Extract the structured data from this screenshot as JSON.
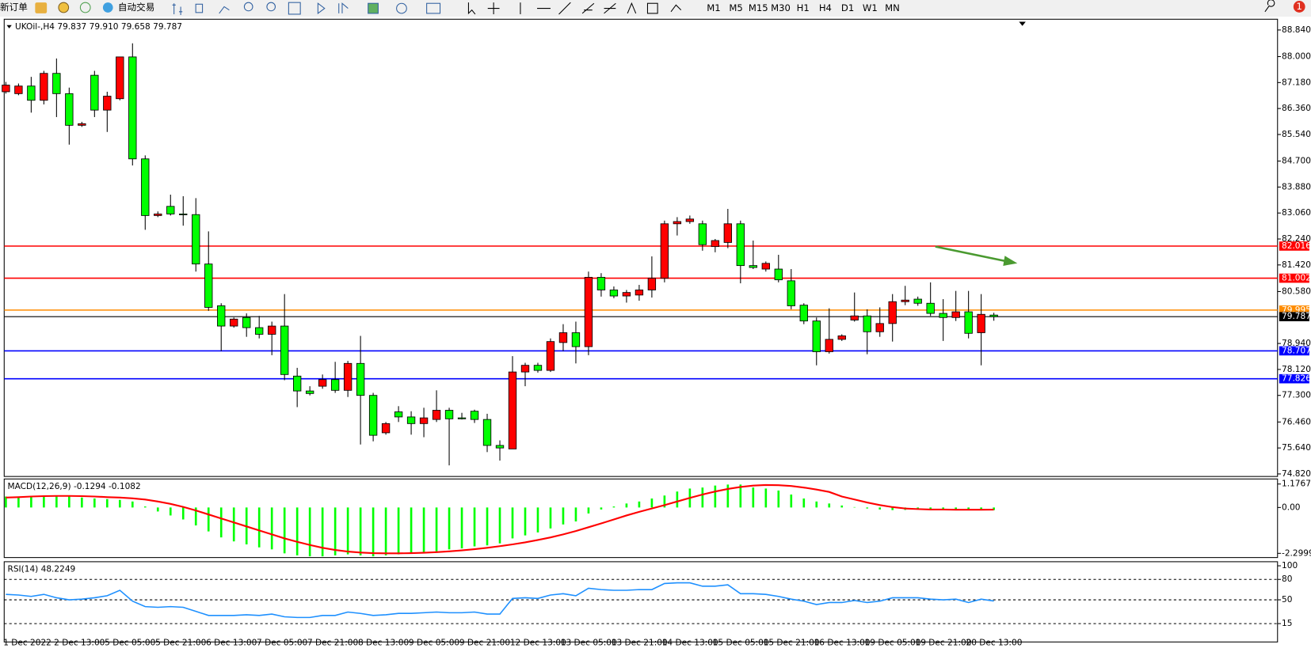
{
  "toolbar": {
    "new_order": "新订单",
    "auto_trading": "自动交易",
    "timeframes": [
      "M1",
      "M5",
      "M15",
      "M30",
      "H1",
      "H4",
      "D1",
      "W1",
      "MN"
    ],
    "notifications": 1
  },
  "chart_data": [
    {
      "type": "candlestick",
      "title": "UKOil-,H4 79.837 79.910 79.658 79.787",
      "categories": [
        "1 Dec 2022",
        null,
        null,
        null,
        "2 Dec 13:00",
        null,
        null,
        null,
        "5 Dec 05:00",
        null,
        null,
        null,
        "5 Dec 21:00",
        null,
        null,
        null,
        "6 Dec 13:00",
        null,
        null,
        null,
        "7 Dec 05:00",
        null,
        null,
        null,
        "7 Dec 21:00",
        null,
        null,
        null,
        "8 Dec 13:00",
        null,
        null,
        null,
        "9 Dec 05:00",
        null,
        null,
        null,
        "9 Dec 21:00",
        null,
        null,
        null,
        "12 Dec 13:00",
        null,
        null,
        null,
        "13 Dec 05:00",
        null,
        null,
        null,
        "13 Dec 21:00",
        null,
        null,
        null,
        "14 Dec 13:00",
        null,
        null,
        null,
        "15 Dec 05:00",
        null,
        null,
        null,
        "15 Dec 21:00",
        null,
        null,
        null,
        "16 Dec 13:00",
        null,
        null,
        null,
        "19 Dec 05:00",
        null,
        null,
        null,
        "19 Dec 21:00",
        null,
        null,
        null,
        "20 Dec 13:00",
        null,
        null
      ],
      "open": [
        86.89,
        86.83,
        87.07,
        86.62,
        87.47,
        86.83,
        85.83,
        87.41,
        86.31,
        86.67,
        87.99,
        84.77,
        82.98,
        83.27,
        83.03,
        83.01,
        81.45,
        80.13,
        79.49,
        79.76,
        79.44,
        79.23,
        79.49,
        77.91,
        77.44,
        77.59,
        77.8,
        77.46,
        78.31,
        77.3,
        76.12,
        76.78,
        76.62,
        76.41,
        76.54,
        76.83,
        76.59,
        76.8,
        76.54,
        75.72,
        75.61,
        78.04,
        78.25,
        78.09,
        78.97,
        79.28,
        78.84,
        81.03,
        80.63,
        80.44,
        80.47,
        80.63,
        81.0,
        82.72,
        82.79,
        82.72,
        82.0,
        82.13,
        82.72,
        81.4,
        81.29,
        81.29,
        80.92,
        80.15,
        79.65,
        78.68,
        79.07,
        79.68,
        79.81,
        79.31,
        79.57,
        80.26,
        80.34,
        80.21,
        79.89,
        79.76,
        79.94,
        79.28,
        79.837
      ],
      "high": [
        87.2,
        87.15,
        87.36,
        87.55,
        87.94,
        87.02,
        85.94,
        87.55,
        86.89,
        87.99,
        88.42,
        84.88,
        83.11,
        83.64,
        83.59,
        83.53,
        82.48,
        80.21,
        79.76,
        79.89,
        79.81,
        79.63,
        80.5,
        78.17,
        77.59,
        77.96,
        78.36,
        78.39,
        79.18,
        77.38,
        76.46,
        76.96,
        76.8,
        76.91,
        77.46,
        76.91,
        76.75,
        76.85,
        76.72,
        75.88,
        78.54,
        78.33,
        78.33,
        79.1,
        79.55,
        79.63,
        81.21,
        81.16,
        80.74,
        80.63,
        80.79,
        81.69,
        82.82,
        82.93,
        82.98,
        82.82,
        82.24,
        83.19,
        82.82,
        82.19,
        81.53,
        81.74,
        81.29,
        80.21,
        79.76,
        80.05,
        79.23,
        80.55,
        80.02,
        80.08,
        80.5,
        80.76,
        80.42,
        80.87,
        80.34,
        80.6,
        80.6,
        80.5,
        79.91
      ],
      "low": [
        86.83,
        86.78,
        86.23,
        86.49,
        86.09,
        85.22,
        85.78,
        86.09,
        85.62,
        86.62,
        84.56,
        82.53,
        82.93,
        82.98,
        82.66,
        81.21,
        79.97,
        78.7,
        79.44,
        79.15,
        79.1,
        78.57,
        77.78,
        76.93,
        77.3,
        77.51,
        77.38,
        77.25,
        75.75,
        75.85,
        76.06,
        76.46,
        76.06,
        75.98,
        76.46,
        75.09,
        76.54,
        76.43,
        75.51,
        75.24,
        75.61,
        77.59,
        78.02,
        78.04,
        78.7,
        78.31,
        78.57,
        80.42,
        80.37,
        80.23,
        80.29,
        80.39,
        80.87,
        82.35,
        82.72,
        81.87,
        81.82,
        81.95,
        80.84,
        81.29,
        81.21,
        80.87,
        80.02,
        79.55,
        78.25,
        78.62,
        79.02,
        79.63,
        78.6,
        79.15,
        79.0,
        80.15,
        80.13,
        79.81,
        79.02,
        79.65,
        79.1,
        78.25,
        79.658
      ],
      "close": [
        87.1,
        87.07,
        86.62,
        87.47,
        86.83,
        85.83,
        85.88,
        86.31,
        86.75,
        87.99,
        84.77,
        82.98,
        83.03,
        83.03,
        83.01,
        81.45,
        80.08,
        79.49,
        79.71,
        79.44,
        79.23,
        79.49,
        77.96,
        77.44,
        77.36,
        77.8,
        77.46,
        78.31,
        77.3,
        76.04,
        76.41,
        76.62,
        76.41,
        76.59,
        76.83,
        76.56,
        76.56,
        76.54,
        75.72,
        75.64,
        78.04,
        78.25,
        78.09,
        79.0,
        79.28,
        78.84,
        81.03,
        80.63,
        80.44,
        80.55,
        80.63,
        81.0,
        82.72,
        82.79,
        82.87,
        82.06,
        82.19,
        82.72,
        81.4,
        81.34,
        81.47,
        80.95,
        80.13,
        79.65,
        78.68,
        79.07,
        79.18,
        79.81,
        79.31,
        79.57,
        80.26,
        80.31,
        80.21,
        79.89,
        79.76,
        79.94,
        79.26,
        79.86,
        79.787
      ],
      "up_color": "#ff0000",
      "down_color": "#00ff00",
      "levels": [
        {
          "value": 82.016,
          "color": "#ff0000"
        },
        {
          "value": 81.002,
          "color": "#ff0000"
        },
        {
          "value": 79.995,
          "color": "#ff8c00"
        },
        {
          "value": 79.787,
          "color": "#000000"
        },
        {
          "value": 78.707,
          "color": "#0000ff"
        },
        {
          "value": 77.826,
          "color": "#0000ff"
        }
      ],
      "ylim": [
        74.74,
        89.18
      ],
      "yticks": [
        {
          "value": 88.84,
          "label": "88.840"
        },
        {
          "value": 88,
          "label": "88.000"
        },
        {
          "value": 87.18,
          "label": "87.180"
        },
        {
          "value": 86.36,
          "label": "86.360"
        },
        {
          "value": 85.54,
          "label": "85.540"
        },
        {
          "value": 84.7,
          "label": "84.700"
        },
        {
          "value": 83.88,
          "label": "83.880"
        },
        {
          "value": 83.06,
          "label": "83.060"
        },
        {
          "value": 82.24,
          "label": "82.240"
        },
        {
          "value": 81.42,
          "label": "81.420"
        },
        {
          "value": 80.58,
          "label": "80.580"
        },
        {
          "value": 78.94,
          "label": "78.940"
        },
        {
          "value": 78.12,
          "label": "78.120"
        },
        {
          "value": 77.3,
          "label": "77.300"
        },
        {
          "value": 76.46,
          "label": "76.460"
        },
        {
          "value": 75.64,
          "label": "75.640"
        },
        {
          "value": 74.82,
          "label": "74.820"
        }
      ],
      "grid": false
    },
    {
      "type": "macd",
      "title": "MACD(12,26,9) -0.1294 -0.1082",
      "histogram": [
        0.55,
        0.55,
        0.58,
        0.6,
        0.6,
        0.55,
        0.5,
        0.45,
        0.42,
        0.38,
        0.3,
        0.05,
        -0.2,
        -0.4,
        -0.6,
        -0.9,
        -1.2,
        -1.5,
        -1.7,
        -1.85,
        -2.0,
        -2.1,
        -2.3,
        -2.4,
        -2.45,
        -2.45,
        -2.4,
        -2.35,
        -2.4,
        -2.45,
        -2.4,
        -2.35,
        -2.3,
        -2.25,
        -2.2,
        -2.1,
        -2.05,
        -1.95,
        -1.9,
        -1.8,
        -1.55,
        -1.4,
        -1.25,
        -1.05,
        -0.85,
        -0.7,
        -0.3,
        -0.1,
        0.05,
        0.2,
        0.3,
        0.45,
        0.6,
        0.8,
        0.95,
        1.0,
        1.1,
        1.15,
        1.15,
        1.0,
        0.95,
        0.85,
        0.65,
        0.45,
        0.3,
        0.2,
        0.1,
        0.02,
        -0.05,
        -0.1,
        -0.13,
        -0.12,
        -0.1,
        -0.08,
        -0.08,
        -0.1,
        -0.1,
        -0.08,
        -0.1294
      ],
      "signal": [
        0.5,
        0.52,
        0.55,
        0.57,
        0.58,
        0.58,
        0.57,
        0.55,
        0.52,
        0.5,
        0.46,
        0.4,
        0.3,
        0.18,
        0.03,
        -0.15,
        -0.35,
        -0.55,
        -0.75,
        -0.95,
        -1.15,
        -1.35,
        -1.55,
        -1.72,
        -1.88,
        -2.02,
        -2.13,
        -2.21,
        -2.26,
        -2.29,
        -2.3,
        -2.3,
        -2.29,
        -2.27,
        -2.24,
        -2.2,
        -2.15,
        -2.09,
        -2.02,
        -1.94,
        -1.85,
        -1.75,
        -1.63,
        -1.5,
        -1.35,
        -1.18,
        -0.99,
        -0.8,
        -0.6,
        -0.4,
        -0.22,
        -0.05,
        0.12,
        0.3,
        0.48,
        0.65,
        0.8,
        0.93,
        1.03,
        1.1,
        1.13,
        1.12,
        1.08,
        1.0,
        0.9,
        0.78,
        0.55,
        0.4,
        0.25,
        0.12,
        0.02,
        -0.05,
        -0.08,
        -0.1,
        -0.1,
        -0.11,
        -0.11,
        -0.11,
        -0.1082
      ],
      "histogram_color": "#00ff00",
      "signal_color": "#ff0000",
      "ylim": [
        -2.51,
        1.43
      ],
      "yticks": [
        1.1767,
        {
          "value": 0,
          "label": "0.00"
        },
        -2.2999
      ]
    },
    {
      "type": "line",
      "title": "RSI(14) 48.2249",
      "values": [
        58,
        57,
        55,
        58,
        53,
        50,
        51,
        53,
        56,
        64,
        48,
        40,
        39,
        40,
        39,
        33,
        27,
        27,
        27,
        28,
        27,
        29,
        25,
        24,
        24,
        27,
        27,
        32,
        30,
        27,
        28,
        30,
        30,
        31,
        32,
        31,
        31,
        32,
        29,
        29,
        52,
        53,
        52,
        57,
        59,
        56,
        67,
        65,
        64,
        64,
        65,
        65,
        74,
        75,
        75,
        70,
        70,
        72,
        59,
        59,
        58,
        55,
        51,
        48,
        43,
        46,
        46,
        49,
        46,
        48,
        53,
        53,
        53,
        51,
        50,
        51,
        46,
        51,
        48.2249
      ],
      "color": "#1e90ff",
      "levels": [
        80,
        50,
        15
      ],
      "ylim": [
        -12,
        106
      ],
      "yticks": [
        100,
        80,
        50,
        15
      ]
    }
  ]
}
